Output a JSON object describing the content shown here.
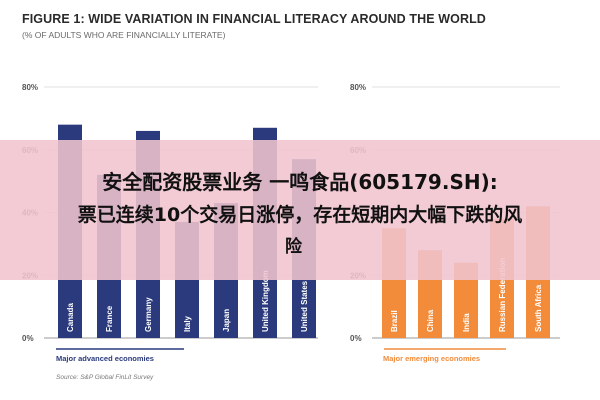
{
  "title": "FIGURE 1: WIDE VARIATION IN FINANCIAL LITERACY AROUND THE WORLD",
  "subtitle": "(% OF ADULTS WHO ARE FINANCIALLY LITERATE)",
  "overlay": {
    "line1": "安全配资股票业务 一鸣食品(605179.SH):",
    "line2": "票已连续10个交易日涨停，存在短期内大幅下跌的风",
    "line3": "险"
  },
  "source": "Source: S&P Global FinLit Survey",
  "colors": {
    "advanced": "#2a3a7c",
    "emerging": "#f28c3b",
    "overlay": "#f0c4ce"
  },
  "chart_data": [
    {
      "type": "bar",
      "group_label": "Major advanced economies",
      "categories": [
        "Canada",
        "France",
        "Germany",
        "Italy",
        "Japan",
        "United Kingdom",
        "United States"
      ],
      "values": [
        68,
        52,
        66,
        37,
        43,
        67,
        57
      ],
      "ylim": [
        0,
        80
      ],
      "yticks": [
        "0%",
        "20%",
        "40%",
        "60%",
        "80%"
      ]
    },
    {
      "type": "bar",
      "group_label": "Major emerging economies",
      "categories": [
        "Brazil",
        "China",
        "India",
        "Russian Federation",
        "South Africa"
      ],
      "values": [
        35,
        28,
        24,
        38,
        42
      ],
      "ylim": [
        0,
        80
      ],
      "yticks": [
        "0%",
        "20%",
        "40%",
        "60%",
        "80%"
      ]
    }
  ]
}
